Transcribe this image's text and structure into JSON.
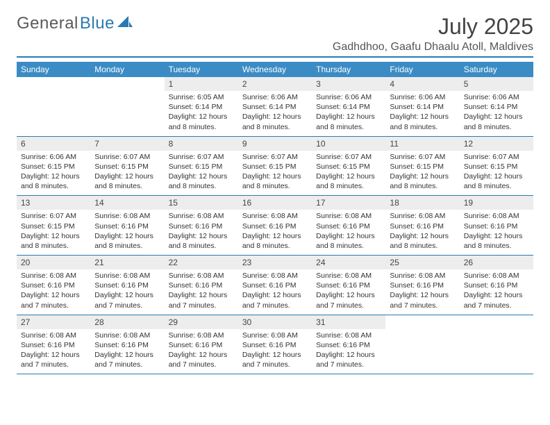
{
  "brand": {
    "part1": "General",
    "part2": "Blue"
  },
  "logo_color": "#2a7ab0",
  "title": "July 2025",
  "location": "Gadhdhoo, Gaafu Dhaalu Atoll, Maldives",
  "header_bg": "#3b8bc4",
  "header_fg": "#ffffff",
  "rule_color": "#2a7ab0",
  "daynum_bg": "#ededed",
  "text_color": "#333333",
  "dow": [
    "Sunday",
    "Monday",
    "Tuesday",
    "Wednesday",
    "Thursday",
    "Friday",
    "Saturday"
  ],
  "weeks": [
    [
      {
        "n": "",
        "sr": "",
        "ss": "",
        "dl": ""
      },
      {
        "n": "",
        "sr": "",
        "ss": "",
        "dl": ""
      },
      {
        "n": "1",
        "sr": "Sunrise: 6:05 AM",
        "ss": "Sunset: 6:14 PM",
        "dl": "Daylight: 12 hours and 8 minutes."
      },
      {
        "n": "2",
        "sr": "Sunrise: 6:06 AM",
        "ss": "Sunset: 6:14 PM",
        "dl": "Daylight: 12 hours and 8 minutes."
      },
      {
        "n": "3",
        "sr": "Sunrise: 6:06 AM",
        "ss": "Sunset: 6:14 PM",
        "dl": "Daylight: 12 hours and 8 minutes."
      },
      {
        "n": "4",
        "sr": "Sunrise: 6:06 AM",
        "ss": "Sunset: 6:14 PM",
        "dl": "Daylight: 12 hours and 8 minutes."
      },
      {
        "n": "5",
        "sr": "Sunrise: 6:06 AM",
        "ss": "Sunset: 6:14 PM",
        "dl": "Daylight: 12 hours and 8 minutes."
      }
    ],
    [
      {
        "n": "6",
        "sr": "Sunrise: 6:06 AM",
        "ss": "Sunset: 6:15 PM",
        "dl": "Daylight: 12 hours and 8 minutes."
      },
      {
        "n": "7",
        "sr": "Sunrise: 6:07 AM",
        "ss": "Sunset: 6:15 PM",
        "dl": "Daylight: 12 hours and 8 minutes."
      },
      {
        "n": "8",
        "sr": "Sunrise: 6:07 AM",
        "ss": "Sunset: 6:15 PM",
        "dl": "Daylight: 12 hours and 8 minutes."
      },
      {
        "n": "9",
        "sr": "Sunrise: 6:07 AM",
        "ss": "Sunset: 6:15 PM",
        "dl": "Daylight: 12 hours and 8 minutes."
      },
      {
        "n": "10",
        "sr": "Sunrise: 6:07 AM",
        "ss": "Sunset: 6:15 PM",
        "dl": "Daylight: 12 hours and 8 minutes."
      },
      {
        "n": "11",
        "sr": "Sunrise: 6:07 AM",
        "ss": "Sunset: 6:15 PM",
        "dl": "Daylight: 12 hours and 8 minutes."
      },
      {
        "n": "12",
        "sr": "Sunrise: 6:07 AM",
        "ss": "Sunset: 6:15 PM",
        "dl": "Daylight: 12 hours and 8 minutes."
      }
    ],
    [
      {
        "n": "13",
        "sr": "Sunrise: 6:07 AM",
        "ss": "Sunset: 6:15 PM",
        "dl": "Daylight: 12 hours and 8 minutes."
      },
      {
        "n": "14",
        "sr": "Sunrise: 6:08 AM",
        "ss": "Sunset: 6:16 PM",
        "dl": "Daylight: 12 hours and 8 minutes."
      },
      {
        "n": "15",
        "sr": "Sunrise: 6:08 AM",
        "ss": "Sunset: 6:16 PM",
        "dl": "Daylight: 12 hours and 8 minutes."
      },
      {
        "n": "16",
        "sr": "Sunrise: 6:08 AM",
        "ss": "Sunset: 6:16 PM",
        "dl": "Daylight: 12 hours and 8 minutes."
      },
      {
        "n": "17",
        "sr": "Sunrise: 6:08 AM",
        "ss": "Sunset: 6:16 PM",
        "dl": "Daylight: 12 hours and 8 minutes."
      },
      {
        "n": "18",
        "sr": "Sunrise: 6:08 AM",
        "ss": "Sunset: 6:16 PM",
        "dl": "Daylight: 12 hours and 8 minutes."
      },
      {
        "n": "19",
        "sr": "Sunrise: 6:08 AM",
        "ss": "Sunset: 6:16 PM",
        "dl": "Daylight: 12 hours and 8 minutes."
      }
    ],
    [
      {
        "n": "20",
        "sr": "Sunrise: 6:08 AM",
        "ss": "Sunset: 6:16 PM",
        "dl": "Daylight: 12 hours and 7 minutes."
      },
      {
        "n": "21",
        "sr": "Sunrise: 6:08 AM",
        "ss": "Sunset: 6:16 PM",
        "dl": "Daylight: 12 hours and 7 minutes."
      },
      {
        "n": "22",
        "sr": "Sunrise: 6:08 AM",
        "ss": "Sunset: 6:16 PM",
        "dl": "Daylight: 12 hours and 7 minutes."
      },
      {
        "n": "23",
        "sr": "Sunrise: 6:08 AM",
        "ss": "Sunset: 6:16 PM",
        "dl": "Daylight: 12 hours and 7 minutes."
      },
      {
        "n": "24",
        "sr": "Sunrise: 6:08 AM",
        "ss": "Sunset: 6:16 PM",
        "dl": "Daylight: 12 hours and 7 minutes."
      },
      {
        "n": "25",
        "sr": "Sunrise: 6:08 AM",
        "ss": "Sunset: 6:16 PM",
        "dl": "Daylight: 12 hours and 7 minutes."
      },
      {
        "n": "26",
        "sr": "Sunrise: 6:08 AM",
        "ss": "Sunset: 6:16 PM",
        "dl": "Daylight: 12 hours and 7 minutes."
      }
    ],
    [
      {
        "n": "27",
        "sr": "Sunrise: 6:08 AM",
        "ss": "Sunset: 6:16 PM",
        "dl": "Daylight: 12 hours and 7 minutes."
      },
      {
        "n": "28",
        "sr": "Sunrise: 6:08 AM",
        "ss": "Sunset: 6:16 PM",
        "dl": "Daylight: 12 hours and 7 minutes."
      },
      {
        "n": "29",
        "sr": "Sunrise: 6:08 AM",
        "ss": "Sunset: 6:16 PM",
        "dl": "Daylight: 12 hours and 7 minutes."
      },
      {
        "n": "30",
        "sr": "Sunrise: 6:08 AM",
        "ss": "Sunset: 6:16 PM",
        "dl": "Daylight: 12 hours and 7 minutes."
      },
      {
        "n": "31",
        "sr": "Sunrise: 6:08 AM",
        "ss": "Sunset: 6:16 PM",
        "dl": "Daylight: 12 hours and 7 minutes."
      },
      {
        "n": "",
        "sr": "",
        "ss": "",
        "dl": ""
      },
      {
        "n": "",
        "sr": "",
        "ss": "",
        "dl": ""
      }
    ]
  ]
}
